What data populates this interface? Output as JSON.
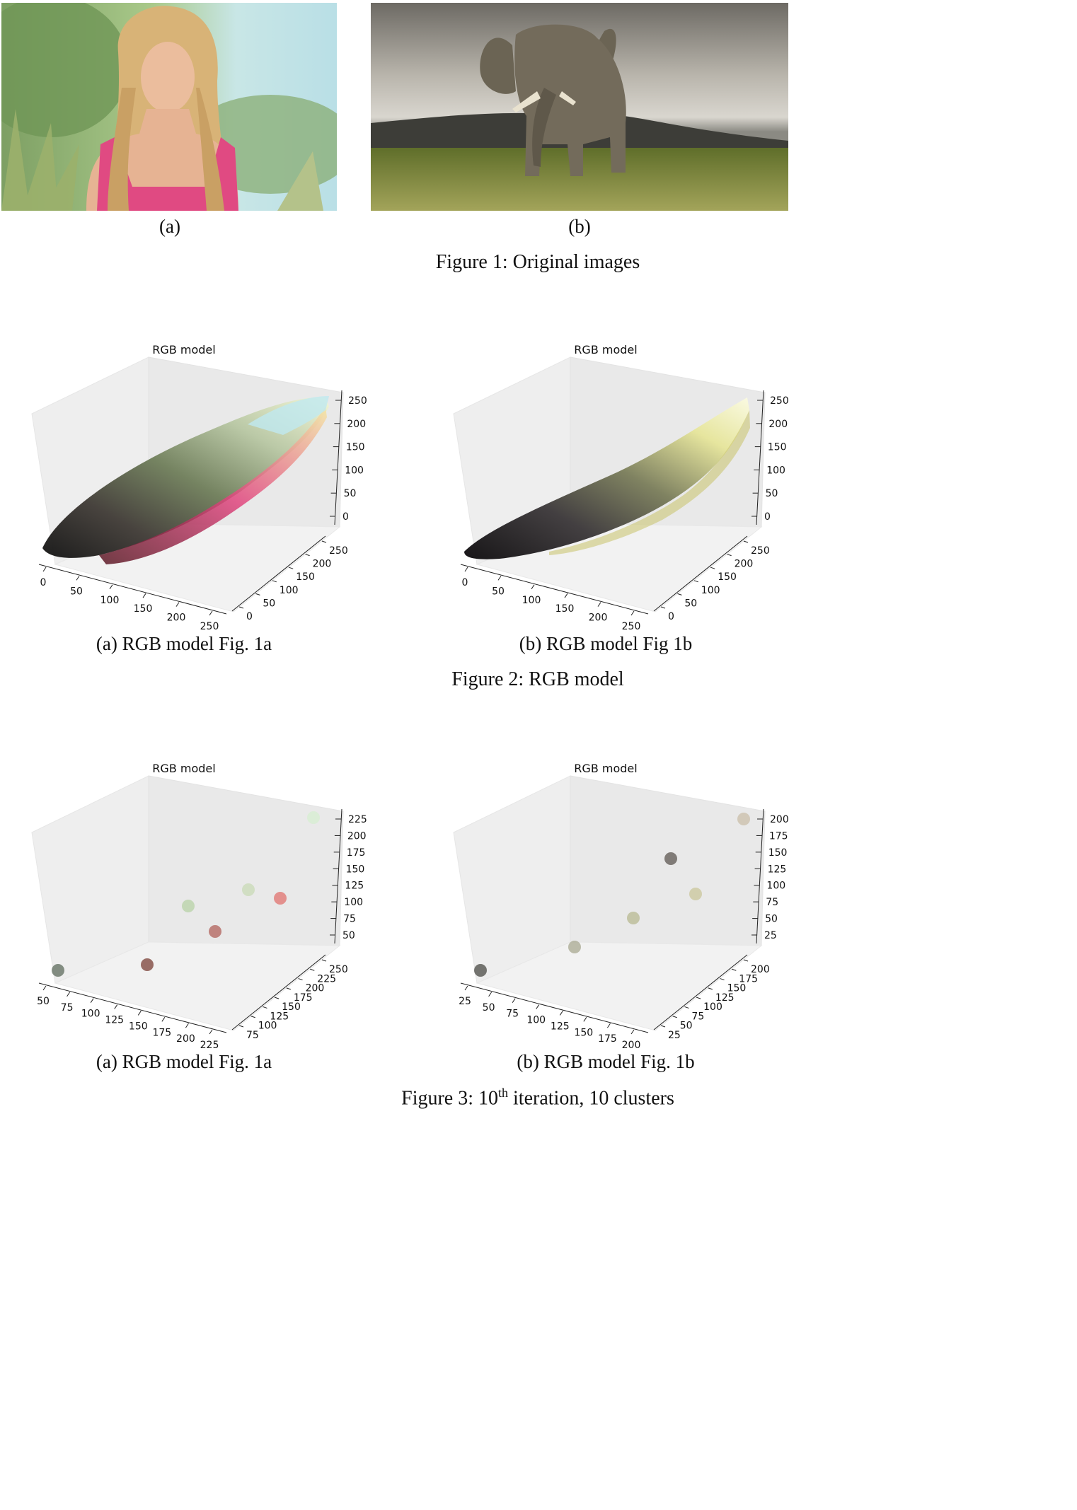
{
  "figure1": {
    "caption": "Figure 1: Original images",
    "panel_a_label": "(a)",
    "panel_b_label": "(b)",
    "colors": {
      "sky": "#bfe4ea",
      "foliage": "#7fa66a",
      "top": "#e0457e",
      "hair": "#d9b47a",
      "skin": "#e8b898",
      "clouds": "#8f8c85",
      "mountain": "#3a3a36",
      "grass": "#7f8a3c",
      "elephant": "#6e6656"
    }
  },
  "figure2": {
    "caption": "Figure 2: RGB model",
    "sub_a": "(a) RGB model Fig. 1a",
    "sub_b": "(b) RGB model Fig 1b",
    "plot_title": "RGB model",
    "panel_a": {
      "z_ticks": [
        "250",
        "200",
        "150",
        "100",
        "50",
        "0"
      ],
      "x_ticks": [
        "0",
        "50",
        "100",
        "150",
        "200",
        "250"
      ],
      "y_ticks": [
        "0",
        "50",
        "100",
        "150",
        "200",
        "250"
      ]
    },
    "panel_b": {
      "z_ticks": [
        "250",
        "200",
        "150",
        "100",
        "50",
        "0"
      ],
      "x_ticks": [
        "0",
        "50",
        "100",
        "150",
        "200",
        "250"
      ],
      "y_ticks": [
        "0",
        "50",
        "100",
        "150",
        "200",
        "250"
      ]
    }
  },
  "figure3": {
    "caption_prefix": "Figure 3: 10",
    "caption_sup": "th",
    "caption_suffix": " iteration, 10 clusters",
    "sub_a": "(a) RGB model Fig. 1a",
    "sub_b": "(b) RGB model Fig. 1b",
    "plot_title": "RGB model",
    "panel_a": {
      "z_ticks": [
        "225",
        "200",
        "175",
        "150",
        "125",
        "100",
        "75",
        "50"
      ],
      "x_ticks": [
        "50",
        "75",
        "100",
        "125",
        "150",
        "175",
        "200",
        "225"
      ],
      "y_ticks": [
        "75",
        "100",
        "125",
        "150",
        "175",
        "200",
        "225",
        "250"
      ]
    },
    "panel_b": {
      "z_ticks": [
        "200",
        "175",
        "150",
        "125",
        "100",
        "75",
        "50",
        "25"
      ],
      "x_ticks": [
        "25",
        "50",
        "75",
        "100",
        "125",
        "150",
        "175",
        "200"
      ],
      "y_ticks": [
        "25",
        "50",
        "75",
        "100",
        "125",
        "150",
        "175",
        "200"
      ]
    }
  },
  "chart_data": [
    {
      "type": "scatter",
      "title": "RGB model",
      "projection": "3d",
      "xlim": [
        0,
        255
      ],
      "ylim": [
        0,
        255
      ],
      "zlim": [
        0,
        255
      ],
      "description_points": "dense pixel cloud of image 1a spanning dark to bright along the diagonal"
    },
    {
      "type": "scatter",
      "title": "RGB model",
      "projection": "3d",
      "xlim": [
        0,
        255
      ],
      "ylim": [
        0,
        255
      ],
      "zlim": [
        0,
        255
      ]
    },
    {
      "type": "scatter",
      "title": "RGB model",
      "projection": "3d",
      "points_color": [
        "#5e6b5c",
        "#7a3f35",
        "#b0605a",
        "#b7d1a6",
        "#c8d9b6",
        "#e0716e",
        "#d6eed0"
      ]
    },
    {
      "type": "scatter",
      "title": "RGB model",
      "projection": "3d",
      "points_color": [
        "#4a4a44",
        "#a8a890",
        "#b7b890",
        "#c9c69a",
        "#5c5550",
        "#c9bea8"
      ]
    }
  ]
}
